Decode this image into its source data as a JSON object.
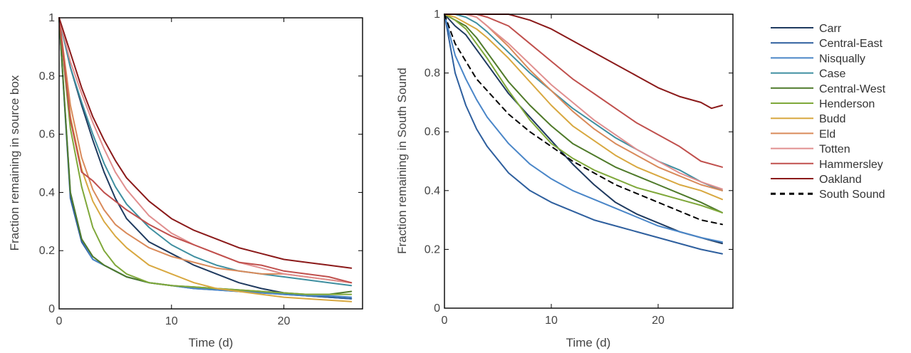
{
  "chart_data": [
    {
      "type": "line",
      "xlabel": "Time (d)",
      "ylabel": "Fraction remaining in source box",
      "xlim": [
        0,
        27
      ],
      "ylim": [
        0,
        1
      ],
      "xticks": [
        0,
        10,
        20
      ],
      "yticks": [
        0,
        0.2,
        0.4,
        0.6,
        0.8,
        1
      ],
      "ytick_labels": [
        "0",
        "0.2",
        "0.4",
        "0.6",
        "0.8",
        "1"
      ],
      "grid": false,
      "series": [
        {
          "name": "Carr",
          "color": "#1f3a5f",
          "x": [
            0,
            1,
            2,
            3,
            4,
            5,
            6,
            8,
            10,
            12,
            14,
            16,
            18,
            20,
            22,
            24,
            26
          ],
          "y": [
            1,
            0.83,
            0.7,
            0.58,
            0.47,
            0.38,
            0.31,
            0.23,
            0.19,
            0.15,
            0.12,
            0.09,
            0.07,
            0.055,
            0.045,
            0.04,
            0.035
          ]
        },
        {
          "name": "Central-East",
          "color": "#2e5f9e",
          "x": [
            0,
            1,
            2,
            3,
            4,
            5,
            6,
            8,
            10,
            12,
            14,
            16,
            18,
            20,
            22,
            24,
            26
          ],
          "y": [
            1,
            0.38,
            0.23,
            0.17,
            0.15,
            0.13,
            0.11,
            0.09,
            0.08,
            0.07,
            0.065,
            0.06,
            0.055,
            0.05,
            0.045,
            0.04,
            0.035
          ]
        },
        {
          "name": "Nisqually",
          "color": "#4a86c8",
          "x": [
            0,
            1,
            2,
            3,
            4,
            5,
            6,
            8,
            10,
            12,
            14,
            16,
            18,
            20,
            22,
            24,
            26
          ],
          "y": [
            1,
            0.4,
            0.24,
            0.17,
            0.15,
            0.13,
            0.11,
            0.09,
            0.08,
            0.07,
            0.065,
            0.06,
            0.055,
            0.05,
            0.045,
            0.045,
            0.04
          ]
        },
        {
          "name": "Case",
          "color": "#3f8fa0",
          "x": [
            0,
            1,
            2,
            3,
            4,
            5,
            6,
            8,
            10,
            12,
            14,
            16,
            18,
            20,
            22,
            24,
            26
          ],
          "y": [
            1,
            0.83,
            0.71,
            0.6,
            0.5,
            0.42,
            0.36,
            0.28,
            0.22,
            0.18,
            0.15,
            0.13,
            0.12,
            0.11,
            0.1,
            0.09,
            0.08
          ]
        },
        {
          "name": "Central-West",
          "color": "#4f7a2a",
          "x": [
            0,
            1,
            2,
            3,
            4,
            5,
            6,
            8,
            10,
            12,
            14,
            16,
            18,
            20,
            22,
            24,
            26
          ],
          "y": [
            1,
            0.4,
            0.24,
            0.18,
            0.15,
            0.13,
            0.11,
            0.09,
            0.08,
            0.075,
            0.07,
            0.065,
            0.06,
            0.055,
            0.05,
            0.05,
            0.06
          ]
        },
        {
          "name": "Henderson",
          "color": "#7fa83a",
          "x": [
            0,
            1,
            2,
            3,
            4,
            5,
            6,
            8,
            10,
            12,
            14,
            16,
            18,
            20,
            22,
            24,
            26
          ],
          "y": [
            1,
            0.62,
            0.42,
            0.28,
            0.2,
            0.15,
            0.12,
            0.09,
            0.08,
            0.075,
            0.07,
            0.065,
            0.06,
            0.055,
            0.05,
            0.05,
            0.05
          ]
        },
        {
          "name": "Budd",
          "color": "#d8a840",
          "x": [
            0,
            1,
            2,
            3,
            4,
            5,
            6,
            8,
            10,
            12,
            14,
            16,
            18,
            20,
            22,
            24,
            26
          ],
          "y": [
            1,
            0.66,
            0.48,
            0.37,
            0.3,
            0.25,
            0.21,
            0.15,
            0.12,
            0.09,
            0.07,
            0.06,
            0.05,
            0.04,
            0.035,
            0.03,
            0.025
          ]
        },
        {
          "name": "Eld",
          "color": "#d98a5a",
          "x": [
            0,
            1,
            2,
            3,
            4,
            5,
            6,
            8,
            10,
            12,
            14,
            16,
            18,
            20,
            22,
            24,
            26
          ],
          "y": [
            1,
            0.7,
            0.52,
            0.41,
            0.34,
            0.29,
            0.26,
            0.21,
            0.18,
            0.16,
            0.14,
            0.13,
            0.12,
            0.12,
            0.11,
            0.1,
            0.09
          ]
        },
        {
          "name": "Totten",
          "color": "#e08f8f",
          "x": [
            0,
            1,
            2,
            3,
            4,
            5,
            6,
            8,
            10,
            12,
            14,
            16,
            18,
            20,
            22,
            24,
            26
          ],
          "y": [
            1,
            0.85,
            0.74,
            0.64,
            0.55,
            0.47,
            0.41,
            0.32,
            0.26,
            0.22,
            0.19,
            0.16,
            0.14,
            0.12,
            0.11,
            0.1,
            0.09
          ]
        },
        {
          "name": "Hammersley",
          "color": "#c0504d",
          "x": [
            0,
            1,
            2,
            3,
            4,
            5,
            6,
            8,
            10,
            12,
            14,
            16,
            18,
            20,
            22,
            24,
            26
          ],
          "y": [
            1,
            0.65,
            0.47,
            0.44,
            0.4,
            0.37,
            0.34,
            0.29,
            0.25,
            0.22,
            0.19,
            0.16,
            0.15,
            0.13,
            0.12,
            0.11,
            0.09
          ]
        },
        {
          "name": "Oakland",
          "color": "#8b1a1a",
          "x": [
            0,
            1,
            2,
            3,
            4,
            5,
            6,
            8,
            10,
            12,
            14,
            16,
            18,
            20,
            22,
            24,
            26
          ],
          "y": [
            1,
            0.88,
            0.76,
            0.66,
            0.58,
            0.51,
            0.45,
            0.37,
            0.31,
            0.27,
            0.24,
            0.21,
            0.19,
            0.17,
            0.16,
            0.15,
            0.14
          ]
        }
      ]
    },
    {
      "type": "line",
      "xlabel": "Time (d)",
      "ylabel": "Fraction remaining in South Sound",
      "xlim": [
        0,
        27
      ],
      "ylim": [
        0,
        1
      ],
      "xticks": [
        0,
        10,
        20
      ],
      "yticks": [
        0,
        0.2,
        0.4,
        0.6,
        0.8,
        1
      ],
      "ytick_labels": [
        "0",
        "0.2",
        "0.4",
        "0.6",
        "0.8",
        "1"
      ],
      "grid": false,
      "legend": "right",
      "series": [
        {
          "name": "Carr",
          "color": "#1f3a5f",
          "x": [
            0,
            1,
            2,
            3,
            4,
            6,
            8,
            10,
            12,
            14,
            16,
            18,
            20,
            22,
            24,
            26
          ],
          "y": [
            1,
            0.96,
            0.93,
            0.88,
            0.83,
            0.73,
            0.65,
            0.57,
            0.49,
            0.42,
            0.36,
            0.32,
            0.29,
            0.26,
            0.24,
            0.22
          ]
        },
        {
          "name": "Central-East",
          "color": "#2e5f9e",
          "x": [
            0,
            1,
            2,
            3,
            4,
            6,
            8,
            10,
            12,
            14,
            16,
            18,
            20,
            22,
            24,
            26
          ],
          "y": [
            1,
            0.8,
            0.69,
            0.61,
            0.55,
            0.46,
            0.4,
            0.36,
            0.33,
            0.3,
            0.28,
            0.26,
            0.24,
            0.22,
            0.2,
            0.185
          ]
        },
        {
          "name": "Nisqually",
          "color": "#4a86c8",
          "x": [
            0,
            1,
            2,
            3,
            4,
            6,
            8,
            10,
            12,
            14,
            16,
            18,
            20,
            22,
            24,
            26
          ],
          "y": [
            1,
            0.86,
            0.78,
            0.71,
            0.65,
            0.56,
            0.49,
            0.44,
            0.4,
            0.37,
            0.34,
            0.31,
            0.28,
            0.26,
            0.24,
            0.225
          ]
        },
        {
          "name": "Case",
          "color": "#3f8fa0",
          "x": [
            0,
            1,
            2,
            3,
            4,
            6,
            8,
            10,
            12,
            14,
            16,
            18,
            20,
            22,
            24,
            26
          ],
          "y": [
            1,
            1,
            0.99,
            0.97,
            0.94,
            0.87,
            0.8,
            0.74,
            0.68,
            0.63,
            0.58,
            0.54,
            0.5,
            0.47,
            0.43,
            0.4
          ]
        },
        {
          "name": "Central-West",
          "color": "#4f7a2a",
          "x": [
            0,
            1,
            2,
            3,
            4,
            6,
            8,
            10,
            12,
            14,
            16,
            18,
            20,
            22,
            24,
            26
          ],
          "y": [
            1,
            0.98,
            0.96,
            0.92,
            0.87,
            0.77,
            0.69,
            0.62,
            0.56,
            0.52,
            0.48,
            0.45,
            0.42,
            0.39,
            0.36,
            0.325
          ]
        },
        {
          "name": "Henderson",
          "color": "#7fa83a",
          "x": [
            0,
            1,
            2,
            3,
            4,
            6,
            8,
            10,
            12,
            14,
            16,
            18,
            20,
            22,
            24,
            26
          ],
          "y": [
            1,
            0.98,
            0.95,
            0.9,
            0.85,
            0.74,
            0.64,
            0.56,
            0.51,
            0.47,
            0.44,
            0.41,
            0.39,
            0.37,
            0.35,
            0.325
          ]
        },
        {
          "name": "Budd",
          "color": "#d8a840",
          "x": [
            0,
            1,
            2,
            3,
            4,
            6,
            8,
            10,
            12,
            14,
            16,
            18,
            20,
            22,
            24,
            26
          ],
          "y": [
            1,
            0.99,
            0.97,
            0.95,
            0.92,
            0.85,
            0.77,
            0.69,
            0.62,
            0.57,
            0.52,
            0.48,
            0.45,
            0.42,
            0.4,
            0.37
          ]
        },
        {
          "name": "Eld",
          "color": "#d98a5a",
          "x": [
            0,
            1,
            2,
            3,
            4,
            6,
            8,
            10,
            12,
            14,
            16,
            18,
            20,
            22,
            24,
            26
          ],
          "y": [
            1,
            1,
            1,
            0.99,
            0.96,
            0.89,
            0.81,
            0.74,
            0.67,
            0.61,
            0.56,
            0.52,
            0.48,
            0.45,
            0.42,
            0.4
          ]
        },
        {
          "name": "Totten",
          "color": "#e08f8f",
          "x": [
            0,
            1,
            2,
            3,
            4,
            6,
            8,
            10,
            12,
            14,
            16,
            18,
            20,
            22,
            24,
            26
          ],
          "y": [
            1,
            1,
            1,
            0.99,
            0.96,
            0.9,
            0.83,
            0.76,
            0.7,
            0.64,
            0.59,
            0.54,
            0.5,
            0.46,
            0.43,
            0.405
          ]
        },
        {
          "name": "Hammersley",
          "color": "#c0504d",
          "x": [
            0,
            1,
            2,
            3,
            4,
            6,
            8,
            10,
            12,
            14,
            16,
            18,
            20,
            22,
            24,
            26
          ],
          "y": [
            1,
            1,
            1,
            1,
            0.99,
            0.96,
            0.9,
            0.84,
            0.78,
            0.73,
            0.68,
            0.63,
            0.59,
            0.55,
            0.5,
            0.48
          ]
        },
        {
          "name": "Oakland",
          "color": "#8b1a1a",
          "x": [
            0,
            1,
            2,
            3,
            4,
            6,
            8,
            10,
            12,
            14,
            16,
            18,
            20,
            22,
            24,
            25,
            26
          ],
          "y": [
            1,
            1,
            1,
            1,
            1,
            1,
            0.98,
            0.95,
            0.91,
            0.87,
            0.83,
            0.79,
            0.75,
            0.72,
            0.7,
            0.68,
            0.69
          ]
        },
        {
          "name": "South Sound",
          "color": "#000000",
          "dashed": true,
          "x": [
            0,
            1,
            2,
            3,
            4,
            6,
            8,
            10,
            12,
            14,
            16,
            18,
            20,
            22,
            24,
            26
          ],
          "y": [
            1,
            0.9,
            0.84,
            0.78,
            0.74,
            0.66,
            0.6,
            0.55,
            0.5,
            0.46,
            0.42,
            0.39,
            0.36,
            0.33,
            0.3,
            0.285
          ]
        }
      ]
    }
  ]
}
